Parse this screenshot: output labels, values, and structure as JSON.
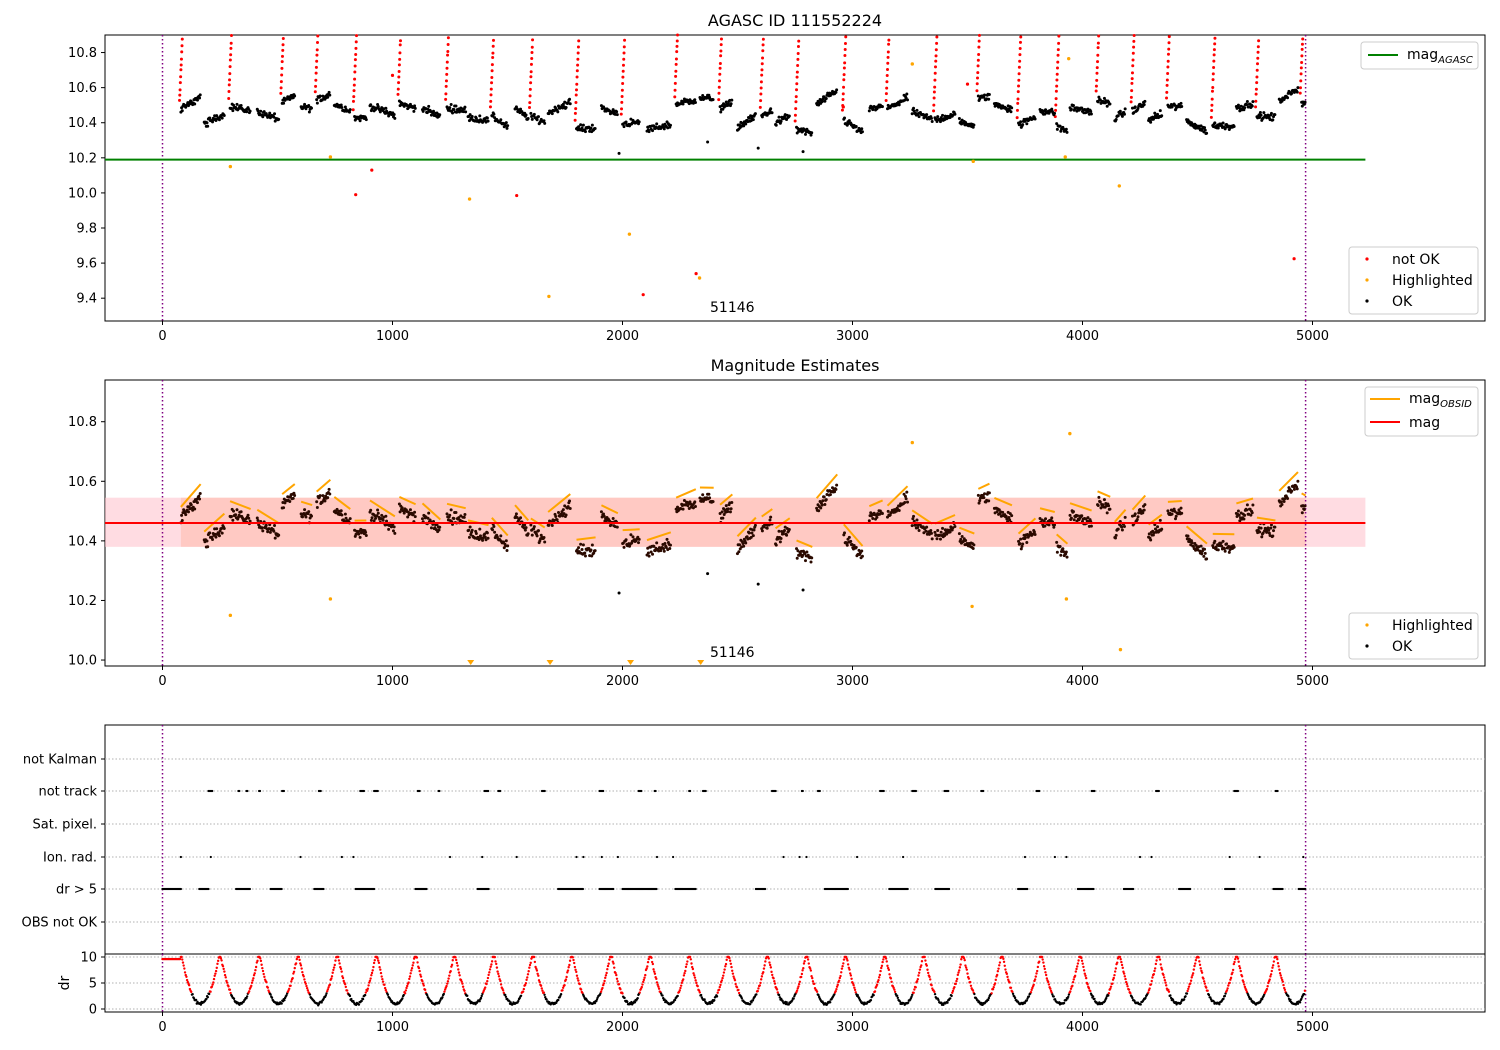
{
  "chart_data": [
    {
      "type": "scatter",
      "title": "AGASC ID 111552224",
      "xlim": [
        -250,
        5750
      ],
      "ylim": [
        9.27,
        10.9
      ],
      "x_ticks": [
        0,
        1000,
        2000,
        3000,
        4000,
        5000
      ],
      "y_ticks": [
        9.4,
        9.6,
        9.8,
        10.0,
        10.2,
        10.4,
        10.6,
        10.8
      ],
      "annotation": {
        "text": "51146",
        "x": 2480,
        "y": 9.33
      },
      "vlines": [
        0,
        4970
      ],
      "hline": {
        "name": "mag_AGASC",
        "label_main": "mag",
        "label_sub": "AGASC",
        "y": 10.19,
        "xmin": -250,
        "xmax": 5230,
        "color": "#008000"
      },
      "legend_lines": [
        {
          "label_main": "mag",
          "label_sub": "AGASC",
          "color": "#008000"
        }
      ],
      "legend_markers": [
        {
          "label": "not OK",
          "color": "#ff0000"
        },
        {
          "label": "Highlighted",
          "color": "#ffa500"
        },
        {
          "label": "OK",
          "color": "#000000"
        }
      ],
      "segments_hint": "OK points cluster between 10.30 and 10.65 in short observation blocks from x=80 to x=4970"
    },
    {
      "type": "scatter",
      "title": "Magnitude Estimates",
      "xlim": [
        -250,
        5750
      ],
      "ylim": [
        9.98,
        10.94
      ],
      "x_ticks": [
        0,
        1000,
        2000,
        3000,
        4000,
        5000
      ],
      "y_ticks": [
        10.0,
        10.2,
        10.4,
        10.6,
        10.8
      ],
      "annotation": {
        "text": "51146",
        "x": 2480,
        "y": 10.03
      },
      "vlines": [
        0,
        4970
      ],
      "mean_line": {
        "label": "mag",
        "y": 10.46,
        "color": "#ff0000"
      },
      "band": {
        "ymin": 10.38,
        "ymax": 10.545,
        "xmin": -250,
        "xmax": 5230,
        "color": "#ffc0cb"
      },
      "legend_lines": [
        {
          "label_main": "mag",
          "label_sub": "OBSID",
          "color": "#ffa500"
        },
        {
          "label_main": "mag",
          "label_sub": "",
          "color": "#ff0000"
        }
      ],
      "legend_markers": [
        {
          "label": "Highlighted",
          "color": "#ffa500"
        },
        {
          "label": "OK",
          "color": "#000000"
        }
      ],
      "highlighted_points": [
        {
          "x": 295,
          "y": 10.15
        },
        {
          "x": 730,
          "y": 10.205
        },
        {
          "x": 3520,
          "y": 10.18
        },
        {
          "x": 3930,
          "y": 10.205
        },
        {
          "x": 4165,
          "y": 10.035
        },
        {
          "x": 3260,
          "y": 10.73
        },
        {
          "x": 3945,
          "y": 10.76
        }
      ],
      "clipped_markers_x": [
        1340,
        1685,
        2035,
        2340
      ]
    },
    {
      "type": "scatter",
      "title": "",
      "xlim": [
        -250,
        5750
      ],
      "categories": [
        "not Kalman",
        "not track",
        "Sat. pixel.",
        "Ion. rad.",
        "dr > 5",
        "OBS not OK"
      ],
      "x_ticks": [
        0,
        1000,
        2000,
        3000,
        4000,
        5000
      ],
      "vlines": [
        0,
        4970
      ],
      "dr_panel": {
        "ylabel": "dr",
        "y_ticks": [
          0,
          5,
          10
        ],
        "ylim": [
          -0.5,
          10.5
        ],
        "threshold": 5
      }
    }
  ],
  "agasc_outliers": {
    "not_ok": [
      {
        "x": 840,
        "y": 9.99
      },
      {
        "x": 910,
        "y": 10.13
      },
      {
        "x": 1540,
        "y": 9.985
      },
      {
        "x": 2090,
        "y": 9.42
      },
      {
        "x": 2320,
        "y": 9.54
      },
      {
        "x": 4920,
        "y": 9.625
      },
      {
        "x": 1000,
        "y": 10.67
      },
      {
        "x": 2960,
        "y": 10.49
      },
      {
        "x": 3500,
        "y": 10.62
      }
    ],
    "highlighted": [
      {
        "x": 295,
        "y": 10.15
      },
      {
        "x": 730,
        "y": 10.205
      },
      {
        "x": 1335,
        "y": 9.965
      },
      {
        "x": 1680,
        "y": 9.41
      },
      {
        "x": 2030,
        "y": 9.765
      },
      {
        "x": 2335,
        "y": 9.515
      },
      {
        "x": 3525,
        "y": 10.18
      },
      {
        "x": 3925,
        "y": 10.205
      },
      {
        "x": 4160,
        "y": 10.04
      },
      {
        "x": 3260,
        "y": 10.735
      },
      {
        "x": 3940,
        "y": 10.765
      }
    ],
    "low_ok": [
      {
        "x": 1985,
        "y": 10.225
      },
      {
        "x": 2370,
        "y": 10.29
      },
      {
        "x": 2590,
        "y": 10.255
      },
      {
        "x": 2785,
        "y": 10.235
      }
    ]
  },
  "flag_rows": {
    "not_track": [
      200,
      330,
      365,
      420,
      520,
      680,
      860,
      920,
      1110,
      1200,
      1400,
      1460,
      1650,
      1900,
      2070,
      2140,
      2290,
      2350,
      2650,
      2780,
      2850,
      3120,
      3260,
      3400,
      3560,
      3800,
      4040,
      4320,
      4660,
      4840
    ],
    "ion_rad": [
      80,
      210,
      600,
      780,
      830,
      1250,
      1390,
      1540,
      1800,
      1830,
      1910,
      1980,
      2150,
      2220,
      2700,
      2770,
      2800,
      3020,
      3220,
      3750,
      3880,
      3930,
      4250,
      4300,
      4640,
      4770,
      4960
    ],
    "dr5_runs": [
      [
        0,
        80
      ],
      [
        160,
        200
      ],
      [
        320,
        380
      ],
      [
        470,
        520
      ],
      [
        660,
        700
      ],
      [
        840,
        920
      ],
      [
        1100,
        1150
      ],
      [
        1370,
        1420
      ],
      [
        1720,
        1830
      ],
      [
        1900,
        1960
      ],
      [
        2000,
        2150
      ],
      [
        2230,
        2320
      ],
      [
        2580,
        2620
      ],
      [
        2880,
        2980
      ],
      [
        3160,
        3240
      ],
      [
        3360,
        3420
      ],
      [
        3720,
        3760
      ],
      [
        3980,
        4050
      ],
      [
        4180,
        4220
      ],
      [
        4420,
        4470
      ],
      [
        4620,
        4660
      ],
      [
        4830,
        4870
      ],
      [
        4940,
        4970
      ]
    ]
  }
}
